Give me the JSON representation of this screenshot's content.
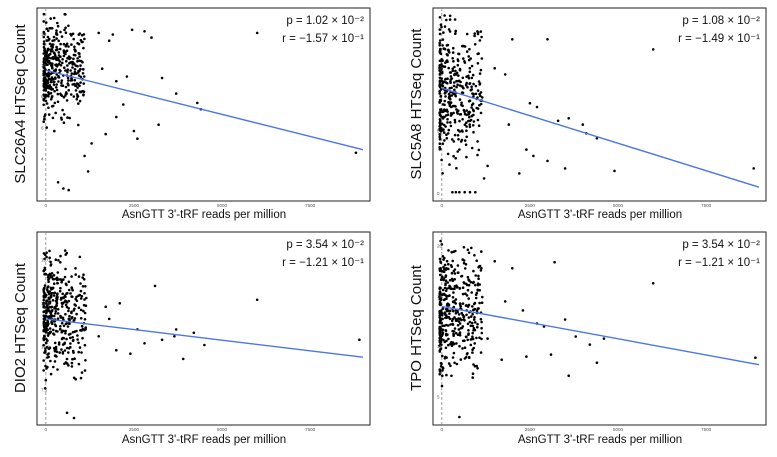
{
  "chart_data": [
    {
      "type": "scatter",
      "ylabel": "SLC26A4  HTSeq Count",
      "xlabel": "AsnGTT 3'-tRF reads per million",
      "xlim": [
        -250,
        9200
      ],
      "ylim": [
        1.3,
        13.7
      ],
      "xticks": [
        "0",
        "2500",
        "5000",
        "7500"
      ],
      "yticks": [
        "4",
        "6",
        "8",
        "10",
        "12"
      ],
      "stats": {
        "p_line": "p = 1.02 × 10⁻²",
        "r_line": "r = −1.57 × 10⁻¹"
      },
      "trend": {
        "x": [
          0,
          9000
        ],
        "y": [
          9.7,
          4.6
        ]
      },
      "cluster": {
        "n": 420,
        "x_max": 1100,
        "y_lo": 5.6,
        "y_hi": 13.3,
        "y_center": 9.8,
        "seed": 11
      },
      "points": [
        [
          1500,
          12.1
        ],
        [
          1800,
          11.6
        ],
        [
          1900,
          12.0
        ],
        [
          2450,
          12.3
        ],
        [
          2800,
          12.2
        ],
        [
          3000,
          11.8
        ],
        [
          6000,
          12.1
        ],
        [
          3300,
          9.2
        ],
        [
          3700,
          8.2
        ],
        [
          4300,
          7.6
        ],
        [
          4400,
          7.2
        ],
        [
          1600,
          9.8
        ],
        [
          2000,
          9.0
        ],
        [
          2300,
          9.3
        ],
        [
          2500,
          5.8
        ],
        [
          2600,
          5.3
        ],
        [
          2200,
          7.5
        ],
        [
          3200,
          6.2
        ],
        [
          2000,
          6.7
        ],
        [
          8800,
          4.4
        ],
        [
          1100,
          4.2
        ],
        [
          1300,
          5.0
        ],
        [
          1700,
          5.6
        ],
        [
          350,
          2.5
        ],
        [
          500,
          2.1
        ],
        [
          650,
          2.0
        ],
        [
          1200,
          3.2
        ],
        [
          900,
          8.0
        ]
      ]
    },
    {
      "type": "scatter",
      "ylabel": "SLC5A8  HTSeq Count",
      "xlabel": "AsnGTT 3'-tRF reads per million",
      "xlim": [
        -250,
        9200
      ],
      "ylim": [
        -0.6,
        14.8
      ],
      "xticks": [
        "0",
        "2500",
        "5000",
        "7500"
      ],
      "yticks": [
        "0",
        "5",
        "10"
      ],
      "stats": {
        "p_line": "p = 1.08 × 10⁻²",
        "r_line": "r = −1.49 × 10⁻¹"
      },
      "trend": {
        "x": [
          0,
          9000
        ],
        "y": [
          8.4,
          0.5
        ]
      },
      "cluster": {
        "n": 400,
        "x_max": 1150,
        "y_lo": 0.5,
        "y_hi": 14.2,
        "y_center": 8.2,
        "seed": 23
      },
      "points": [
        [
          300,
          0.1
        ],
        [
          400,
          0.1
        ],
        [
          500,
          0.1
        ],
        [
          650,
          0.1
        ],
        [
          800,
          0.1
        ],
        [
          950,
          0.1
        ],
        [
          2000,
          12.3
        ],
        [
          3000,
          12.3
        ],
        [
          6000,
          11.5
        ],
        [
          1500,
          10.0
        ],
        [
          1800,
          9.5
        ],
        [
          2500,
          7.2
        ],
        [
          2700,
          6.9
        ],
        [
          3600,
          6.0
        ],
        [
          4000,
          5.5
        ],
        [
          3300,
          5.8
        ],
        [
          4100,
          4.8
        ],
        [
          4400,
          4.4
        ],
        [
          2400,
          3.5
        ],
        [
          2600,
          3.0
        ],
        [
          3000,
          2.6
        ],
        [
          3500,
          2.0
        ],
        [
          4900,
          1.8
        ],
        [
          8850,
          2.0
        ],
        [
          1900,
          5.5
        ],
        [
          1200,
          1.2
        ],
        [
          1300,
          2.2
        ],
        [
          2200,
          1.6
        ]
      ]
    },
    {
      "type": "scatter",
      "ylabel": "DIO2  HTSeq Count",
      "xlabel": "AsnGTT 3'-tRF reads per million",
      "xlim": [
        -250,
        9200
      ],
      "ylim": [
        5.5,
        16.6
      ],
      "xticks": [
        "0",
        "2500",
        "5000",
        "7500"
      ],
      "yticks": [
        "7.5",
        "10.0",
        "12.5",
        "15.0"
      ],
      "stats": {
        "p_line": "p = 3.54 × 10⁻²",
        "r_line": "r = −1.21 × 10⁻¹"
      },
      "trend": {
        "x": [
          0,
          9000
        ],
        "y": [
          11.6,
          9.4
        ]
      },
      "cluster": {
        "n": 430,
        "x_max": 1150,
        "y_lo": 7.5,
        "y_hi": 16.2,
        "y_center": 11.8,
        "seed": 37
      },
      "points": [
        [
          3100,
          13.5
        ],
        [
          6000,
          12.7
        ],
        [
          3700,
          11.0
        ],
        [
          3650,
          10.6
        ],
        [
          4200,
          10.8
        ],
        [
          4500,
          10.1
        ],
        [
          2600,
          11.0
        ],
        [
          2800,
          10.2
        ],
        [
          3300,
          10.4
        ],
        [
          8900,
          10.4
        ],
        [
          2000,
          9.8
        ],
        [
          2400,
          9.6
        ],
        [
          1500,
          10.6
        ],
        [
          1800,
          11.6
        ],
        [
          1700,
          12.3
        ],
        [
          2100,
          12.5
        ],
        [
          3900,
          9.3
        ],
        [
          600,
          6.2
        ],
        [
          800,
          5.9
        ],
        [
          1000,
          8.2
        ]
      ]
    },
    {
      "type": "scatter",
      "ylabel": "TPO  HTSeq Count",
      "xlabel": "AsnGTT 3'-tRF reads per million",
      "xlim": [
        -250,
        9200
      ],
      "ylim": [
        2.2,
        21.4
      ],
      "xticks": [
        "0",
        "2500",
        "5000",
        "7500"
      ],
      "yticks": [
        "5",
        "10",
        "15",
        "20"
      ],
      "stats": {
        "p_line": "p = 3.54 × 10⁻²",
        "r_line": "r = −1.21 × 10⁻¹"
      },
      "trend": {
        "x": [
          0,
          9000
        ],
        "y": [
          14.0,
          8.2
        ]
      },
      "cluster": {
        "n": 430,
        "x_max": 1150,
        "y_lo": 5.0,
        "y_hi": 20.5,
        "y_center": 13.5,
        "seed": 53
      },
      "points": [
        [
          1500,
          18.5
        ],
        [
          2000,
          17.8
        ],
        [
          3200,
          18.4
        ],
        [
          6000,
          16.3
        ],
        [
          1800,
          14.5
        ],
        [
          2300,
          13.6
        ],
        [
          2700,
          12.3
        ],
        [
          2900,
          12.0
        ],
        [
          3500,
          12.7
        ],
        [
          3800,
          11.0
        ],
        [
          4200,
          10.2
        ],
        [
          4600,
          10.8
        ],
        [
          2400,
          9.0
        ],
        [
          3100,
          9.2
        ],
        [
          4400,
          8.4
        ],
        [
          3600,
          7.1
        ],
        [
          1700,
          8.7
        ],
        [
          8900,
          8.9
        ],
        [
          500,
          3.0
        ],
        [
          1300,
          10.8
        ]
      ]
    }
  ]
}
